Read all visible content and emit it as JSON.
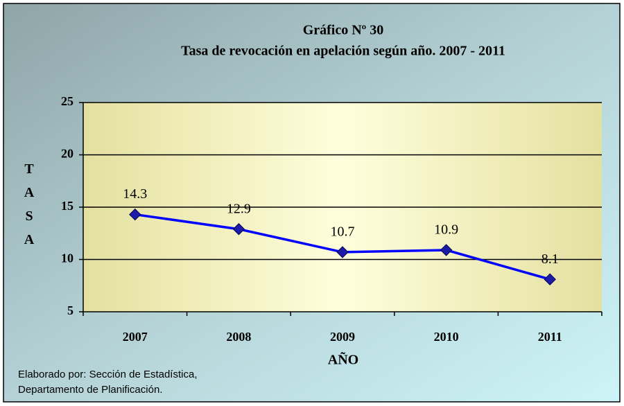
{
  "chart_data": {
    "type": "line",
    "title": "Gráfico Nº 30",
    "subtitle": "Tasa de revocación en apelación según año. 2007 - 2011",
    "x_label": "AÑO",
    "y_label": "TASA",
    "categories": [
      "2007",
      "2008",
      "2009",
      "2010",
      "2011"
    ],
    "series": [
      {
        "name": "Tasa",
        "color": "#0000ff",
        "values": [
          14.3,
          12.9,
          10.7,
          10.9,
          8.1
        ]
      }
    ],
    "ylim": [
      5,
      25
    ],
    "yticks": [
      5,
      10,
      15,
      20,
      25
    ],
    "grid": true,
    "footer": [
      "Elaborado por: Sección de Estadística,",
      "Departamento de Planificación."
    ]
  }
}
